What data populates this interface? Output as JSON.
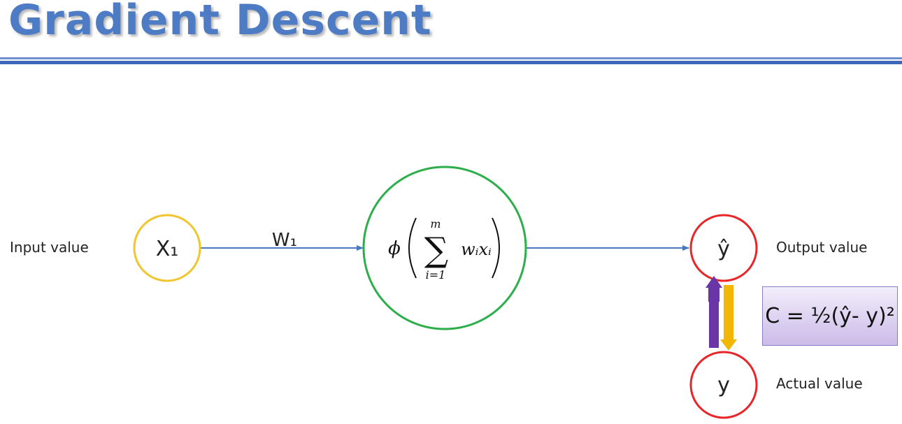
{
  "title": "Gradient Descent",
  "labels": {
    "input": "Input value",
    "output": "Output value",
    "actual": "Actual value"
  },
  "nodes": {
    "x1": "X₁",
    "yhat": "ŷ",
    "y": "y"
  },
  "weight": "W₁",
  "formula": {
    "phi": "ϕ",
    "sum": "∑",
    "upper": "m",
    "lower": "i=1",
    "term": "wᵢxᵢ"
  },
  "cost": "C = ½(ŷ- y)²",
  "colors": {
    "title": "#4e7cc4",
    "rule": "#3f67b8",
    "input_node": "#f0c630",
    "neuron_node": "#2cae4a",
    "output_node": "#e8262a",
    "connector": "#4a77c4",
    "arrow_up": "#6a35a6",
    "arrow_down": "#f2b705",
    "cost_box": "#cbbbe8"
  }
}
